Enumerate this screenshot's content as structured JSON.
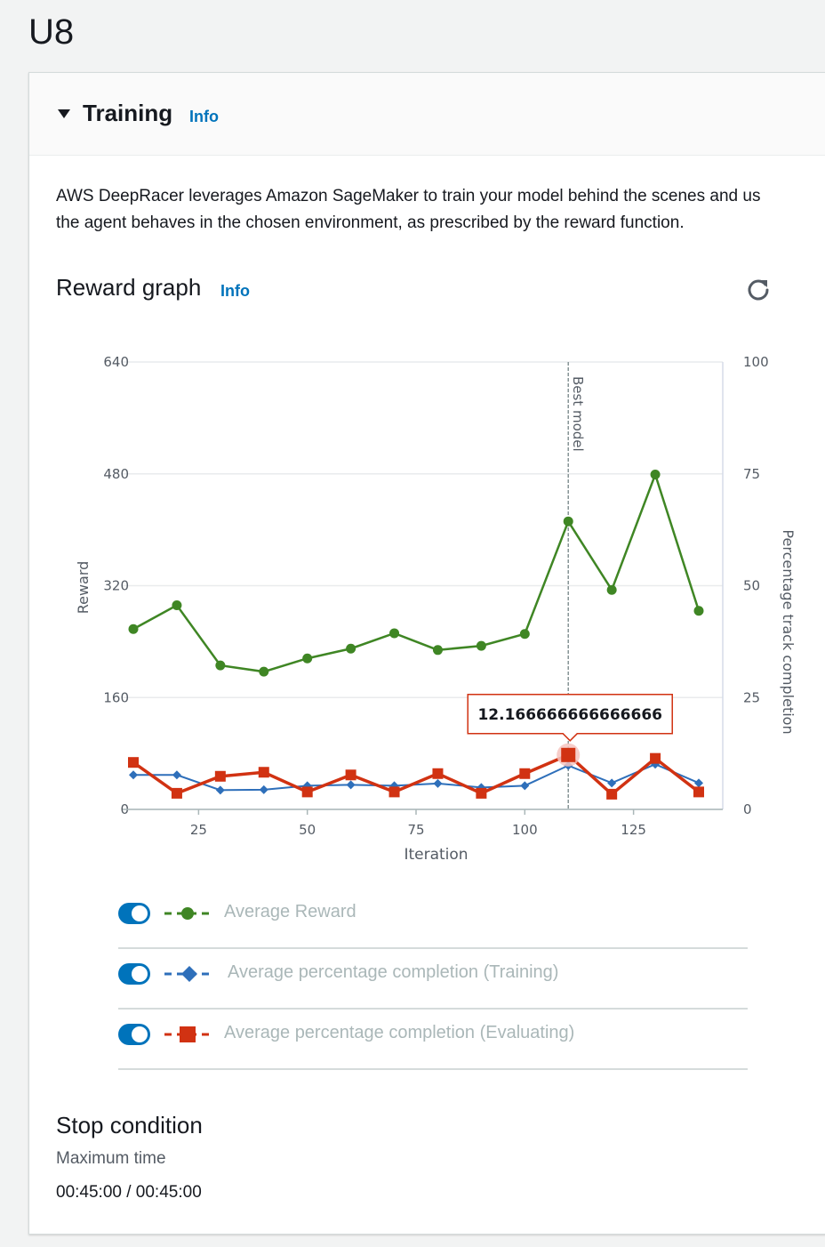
{
  "page": {
    "title": "U8"
  },
  "training": {
    "title": "Training",
    "info_label": "Info",
    "description_line1": "AWS DeepRacer leverages Amazon SageMaker to train your model behind the scenes and us",
    "description_line2": "the agent behaves in the chosen environment, as prescribed by the reward function."
  },
  "reward_graph": {
    "title": "Reward graph",
    "info_label": "Info",
    "refresh_icon": "refresh-icon"
  },
  "legend": [
    {
      "label": "Average Reward",
      "color": "#3f8624",
      "marker": "circle",
      "enabled": true
    },
    {
      "label": "Average percentage completion (Training)",
      "color": "#2e6fba",
      "marker": "diamond",
      "enabled": true
    },
    {
      "label": "Average percentage completion (Evaluating)",
      "color": "#d13212",
      "marker": "square",
      "enabled": true
    }
  ],
  "chart_data": {
    "type": "line",
    "xlabel": "Iteration",
    "ylabel": "Reward",
    "y2label": "Percentage track completion",
    "xlim": [
      7,
      140
    ],
    "ylim": [
      0,
      640
    ],
    "y2lim": [
      0,
      100
    ],
    "x_ticks": [
      "25",
      "50",
      "75",
      "100",
      "125"
    ],
    "x_tick_values": [
      25,
      50,
      75,
      100,
      125
    ],
    "y_ticks": [
      "0",
      "160",
      "320",
      "480",
      "640"
    ],
    "y_tick_values": [
      0,
      160,
      320,
      480,
      640
    ],
    "y2_ticks": [
      "0",
      "25",
      "50",
      "75",
      "100"
    ],
    "y2_tick_values": [
      0,
      25,
      50,
      75,
      100
    ],
    "grid": true,
    "x": [
      10,
      20,
      30,
      40,
      50,
      60,
      70,
      80,
      90,
      100,
      110,
      120,
      130,
      140
    ],
    "series": [
      {
        "name": "Average Reward",
        "axis": "left",
        "color": "#3f8624",
        "marker": "circle",
        "values": [
          258,
          292,
          206,
          197,
          216,
          230,
          252,
          228,
          234,
          251,
          412,
          314,
          479,
          284
        ]
      },
      {
        "name": "Average percentage completion (Training)",
        "axis": "right",
        "color": "#2e6fba",
        "marker": "diamond",
        "values": [
          7.7,
          7.7,
          4.3,
          4.4,
          5.3,
          5.5,
          5.3,
          5.8,
          4.9,
          5.3,
          9.8,
          5.9,
          10.1,
          5.9
        ]
      },
      {
        "name": "Average percentage completion (Evaluating)",
        "axis": "right",
        "color": "#d13212",
        "marker": "square",
        "values": [
          10.5,
          3.6,
          7.4,
          8.3,
          3.9,
          7.7,
          3.9,
          8.0,
          3.6,
          8.0,
          12.166666666666666,
          3.4,
          11.4,
          3.9
        ]
      }
    ],
    "annotations": [
      {
        "type": "vline",
        "x": 110,
        "label": "Best model"
      }
    ],
    "tooltip": {
      "series_index": 2,
      "point_index": 10,
      "text": "12.166666666666666"
    }
  },
  "stop_condition": {
    "title": "Stop condition",
    "label": "Maximum time",
    "value": "00:45:00 / 00:45:00"
  }
}
